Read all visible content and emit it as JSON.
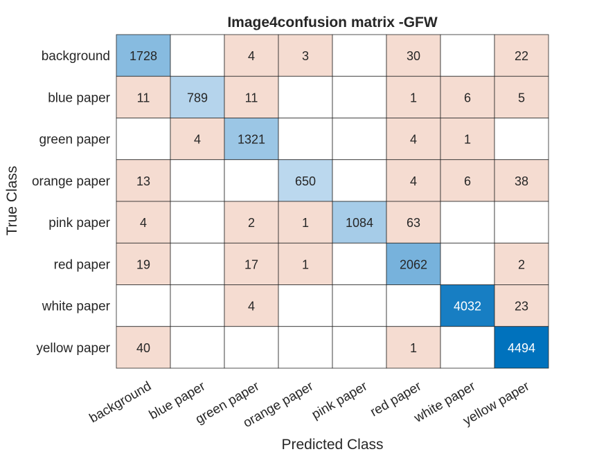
{
  "chart_data": {
    "type": "heatmap",
    "title": "Image4confusion matrix -GFW",
    "xlabel": "Predicted Class",
    "ylabel": "True Class",
    "classes": [
      "background",
      "blue paper",
      "green paper",
      "orange paper",
      "pink paper",
      "red paper",
      "white paper",
      "yellow paper"
    ],
    "matrix": [
      [
        1728,
        null,
        4,
        3,
        null,
        30,
        null,
        22
      ],
      [
        11,
        789,
        11,
        null,
        null,
        1,
        6,
        5
      ],
      [
        null,
        4,
        1321,
        null,
        null,
        4,
        1,
        null
      ],
      [
        13,
        null,
        null,
        650,
        null,
        4,
        6,
        38
      ],
      [
        4,
        null,
        2,
        1,
        1084,
        63,
        null,
        null
      ],
      [
        19,
        null,
        17,
        1,
        null,
        2062,
        null,
        2
      ],
      [
        null,
        null,
        4,
        null,
        null,
        null,
        4032,
        23
      ],
      [
        40,
        null,
        null,
        null,
        null,
        1,
        null,
        4494
      ]
    ],
    "colors": {
      "off_diagonal": "#f5dcd1",
      "diagonal_light": "#dbe9f6",
      "diagonal_dark": "#0072bd",
      "empty": "#ffffff",
      "grid": "#262626"
    }
  }
}
